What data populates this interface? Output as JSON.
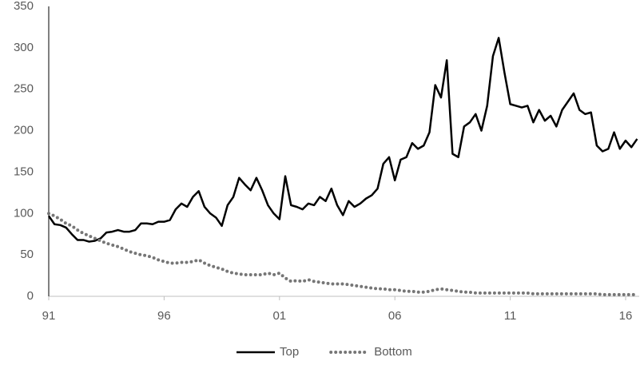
{
  "chart_data": {
    "type": "line",
    "categories": [
      "91",
      null,
      null,
      null,
      null,
      null,
      null,
      null,
      null,
      null,
      null,
      null,
      null,
      null,
      null,
      null,
      null,
      null,
      null,
      null,
      "96",
      null,
      null,
      null,
      null,
      null,
      null,
      null,
      null,
      null,
      null,
      null,
      null,
      null,
      null,
      null,
      null,
      null,
      null,
      null,
      "01",
      null,
      null,
      null,
      null,
      null,
      null,
      null,
      null,
      null,
      null,
      null,
      null,
      null,
      null,
      null,
      null,
      null,
      null,
      null,
      "06",
      null,
      null,
      null,
      null,
      null,
      null,
      null,
      null,
      null,
      null,
      null,
      null,
      null,
      null,
      null,
      null,
      null,
      null,
      null,
      "11",
      null,
      null,
      null,
      null,
      null,
      null,
      null,
      null,
      null,
      null,
      null,
      null,
      null,
      null,
      null,
      null,
      null,
      null,
      null,
      "16",
      null,
      null
    ],
    "series": [
      {
        "name": "Top",
        "color": "#000000",
        "style": "solid",
        "values": [
          97,
          87,
          86,
          83,
          75,
          68,
          68,
          66,
          67,
          70,
          77,
          78,
          80,
          78,
          78,
          80,
          88,
          88,
          87,
          90,
          90,
          92,
          105,
          112,
          108,
          120,
          127,
          108,
          100,
          95,
          85,
          110,
          120,
          143,
          135,
          128,
          143,
          128,
          110,
          100,
          93,
          145,
          110,
          108,
          105,
          112,
          110,
          120,
          115,
          130,
          110,
          98,
          115,
          108,
          112,
          118,
          122,
          130,
          160,
          168,
          140,
          165,
          168,
          185,
          178,
          182,
          198,
          255,
          240,
          285,
          172,
          168,
          205,
          210,
          220,
          200,
          230,
          290,
          312,
          270,
          232,
          230,
          228,
          230,
          210,
          225,
          212,
          218,
          205,
          225,
          235,
          245,
          225,
          220,
          222,
          182,
          175,
          178,
          198,
          178,
          188,
          180,
          190
        ]
      },
      {
        "name": "Bottom",
        "color": "#767676",
        "style": "dotted",
        "values": [
          100,
          97,
          93,
          88,
          85,
          80,
          76,
          73,
          70,
          67,
          64,
          62,
          60,
          57,
          54,
          52,
          50,
          49,
          47,
          44,
          42,
          40,
          40,
          41,
          41,
          42,
          44,
          40,
          37,
          35,
          33,
          30,
          28,
          27,
          26,
          26,
          26,
          26,
          28,
          26,
          28,
          22,
          18,
          19,
          18,
          20,
          18,
          17,
          16,
          15,
          15,
          15,
          14,
          13,
          12,
          11,
          10,
          9,
          9,
          8,
          8,
          7,
          6,
          6,
          5,
          5,
          6,
          8,
          9,
          8,
          7,
          6,
          5,
          5,
          4,
          4,
          4,
          4,
          4,
          4,
          4,
          4,
          4,
          4,
          3,
          3,
          3,
          3,
          3,
          3,
          3,
          3,
          3,
          3,
          3,
          3,
          2,
          2,
          2,
          2,
          2,
          2,
          2
        ]
      }
    ],
    "ylim": [
      0,
      350
    ],
    "yticks": [
      0,
      50,
      100,
      150,
      200,
      250,
      300,
      350
    ],
    "grid": false,
    "legend": "bottom"
  }
}
